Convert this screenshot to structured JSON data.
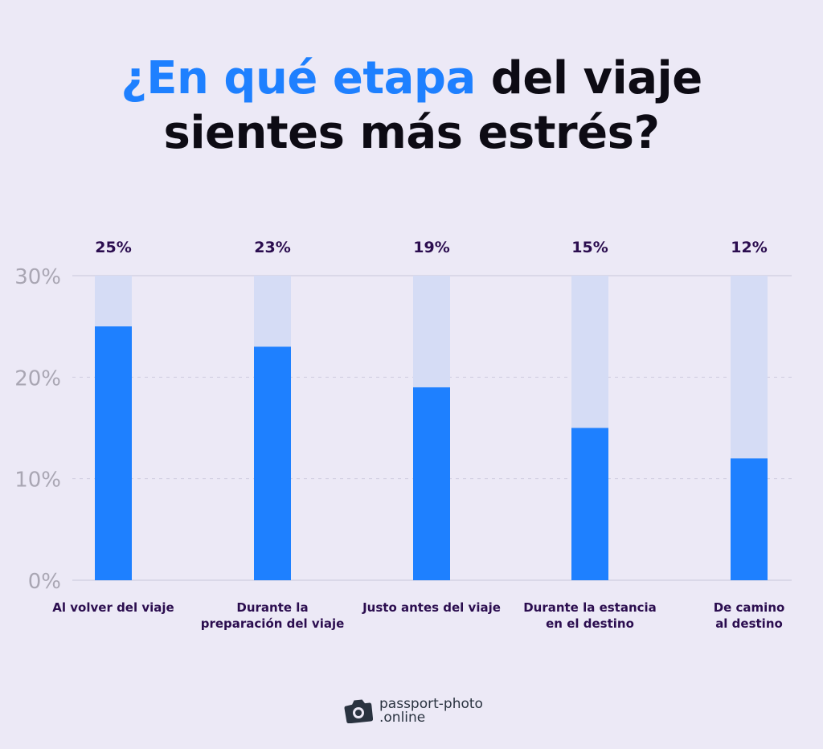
{
  "title": {
    "highlight": "¿En qué etapa",
    "rest_line1": " del viaje",
    "line2": "sientes más estrés?"
  },
  "colors": {
    "accent": "#1e80ff",
    "track": "#d5dcf5",
    "label": "#2b0d4f",
    "axis": "#a9a6b3"
  },
  "chart_data": {
    "type": "bar",
    "categories": [
      [
        "Al volver del viaje"
      ],
      [
        "Durante la",
        "preparación del viaje"
      ],
      [
        "Justo antes del viaje"
      ],
      [
        "Durante la estancia",
        "en el destino"
      ],
      [
        "De camino",
        "al destino"
      ]
    ],
    "values": [
      25,
      23,
      19,
      15,
      12
    ],
    "data_labels": [
      "25%",
      "23%",
      "19%",
      "15%",
      "12%"
    ],
    "ylim": [
      0,
      30
    ],
    "yticks": [
      0,
      10,
      20,
      30
    ],
    "ytick_labels": [
      "0%",
      "10%",
      "20%",
      "30%"
    ],
    "grid": true
  },
  "logo": {
    "line1": "passport-photo",
    "line2": ".online"
  }
}
